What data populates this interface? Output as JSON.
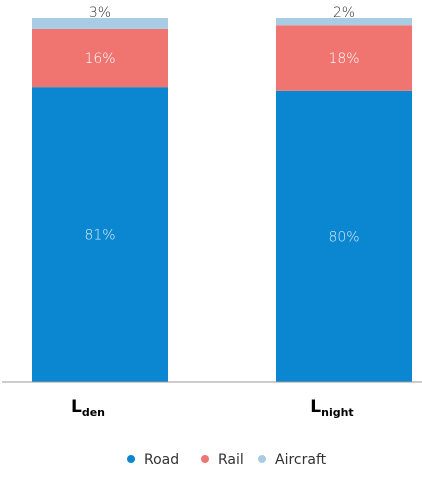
{
  "chart_data": {
    "type": "bar",
    "stacked": true,
    "categories": [
      {
        "main": "L",
        "sub": "den"
      },
      {
        "main": "L",
        "sub": "night"
      }
    ],
    "series": [
      {
        "name": "Road",
        "color": "#0a87d0",
        "values": [
          81,
          80
        ],
        "labels": [
          "81%",
          "80%"
        ],
        "label_color": "#d8eaf6"
      },
      {
        "name": "Rail",
        "color": "#f07570",
        "values": [
          16,
          18
        ],
        "labels": [
          "16%",
          "18%"
        ],
        "label_color": "#ffffff"
      },
      {
        "name": "Aircraft",
        "color": "#a8cce3",
        "values": [
          3,
          2
        ],
        "labels": [
          "3%",
          "2%"
        ],
        "label_color": "#333333"
      }
    ],
    "ylim": [
      0,
      100
    ],
    "grid": false,
    "legend_position": "bottom"
  }
}
